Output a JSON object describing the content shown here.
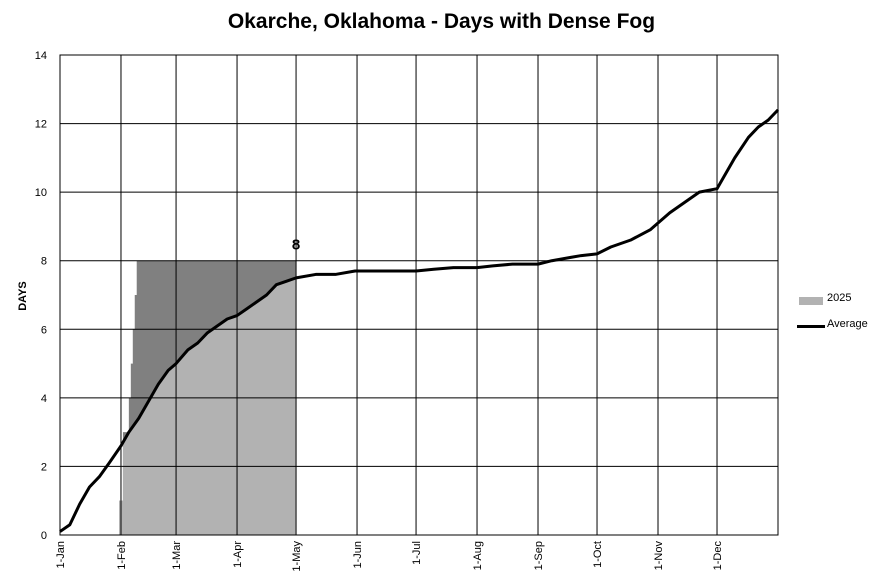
{
  "chart_data": {
    "type": "area",
    "title": "Okarche, Oklahoma - Days with Dense Fog",
    "ylabel": "DAYS",
    "xlabel": "",
    "ylim": [
      0,
      14
    ],
    "yticks": [
      0,
      2,
      4,
      6,
      8,
      10,
      12,
      14
    ],
    "x_ticks": [
      "1-Jan",
      "1-Feb",
      "1-Mar",
      "1-Apr",
      "1-May",
      "1-Jun",
      "1-Jul",
      "1-Aug",
      "1-Sep",
      "1-Oct",
      "1-Nov",
      "1-Dec"
    ],
    "grid": true,
    "legend_position": "right",
    "annotation": {
      "text": "8",
      "x_day": 120,
      "y": 8
    },
    "series": [
      {
        "name": "2025",
        "kind": "cumulative-area",
        "color": "#b2b2b2",
        "above_average_color": "#808080",
        "points": [
          [
            0,
            0
          ],
          [
            30,
            0
          ],
          [
            30,
            1
          ],
          [
            32,
            1
          ],
          [
            32,
            3
          ],
          [
            35,
            3
          ],
          [
            35,
            4
          ],
          [
            36,
            4
          ],
          [
            36,
            5
          ],
          [
            37,
            5
          ],
          [
            37,
            6
          ],
          [
            38,
            6
          ],
          [
            38,
            7
          ],
          [
            39,
            7
          ],
          [
            39,
            8
          ],
          [
            120,
            8
          ]
        ]
      },
      {
        "name": "Average",
        "kind": "line",
        "color": "#000000",
        "points": [
          [
            0,
            0.1
          ],
          [
            5,
            0.3
          ],
          [
            10,
            0.9
          ],
          [
            15,
            1.4
          ],
          [
            20,
            1.7
          ],
          [
            25,
            2.1
          ],
          [
            31,
            2.6
          ],
          [
            35,
            3.0
          ],
          [
            40,
            3.4
          ],
          [
            45,
            3.9
          ],
          [
            50,
            4.4
          ],
          [
            55,
            4.8
          ],
          [
            59,
            5.0
          ],
          [
            65,
            5.4
          ],
          [
            70,
            5.6
          ],
          [
            75,
            5.9
          ],
          [
            80,
            6.1
          ],
          [
            85,
            6.3
          ],
          [
            90,
            6.4
          ],
          [
            95,
            6.6
          ],
          [
            100,
            6.8
          ],
          [
            105,
            7.0
          ],
          [
            110,
            7.3
          ],
          [
            115,
            7.4
          ],
          [
            120,
            7.5
          ],
          [
            130,
            7.6
          ],
          [
            140,
            7.6
          ],
          [
            150,
            7.7
          ],
          [
            160,
            7.7
          ],
          [
            170,
            7.7
          ],
          [
            181,
            7.7
          ],
          [
            190,
            7.75
          ],
          [
            200,
            7.8
          ],
          [
            212,
            7.8
          ],
          [
            220,
            7.85
          ],
          [
            230,
            7.9
          ],
          [
            243,
            7.9
          ],
          [
            250,
            8.0
          ],
          [
            260,
            8.1
          ],
          [
            265,
            8.15
          ],
          [
            273,
            8.2
          ],
          [
            280,
            8.4
          ],
          [
            290,
            8.6
          ],
          [
            300,
            8.9
          ],
          [
            304,
            9.1
          ],
          [
            310,
            9.4
          ],
          [
            315,
            9.6
          ],
          [
            320,
            9.8
          ],
          [
            325,
            10.0
          ],
          [
            334,
            10.1
          ],
          [
            338,
            10.5
          ],
          [
            343,
            11.0
          ],
          [
            350,
            11.6
          ],
          [
            355,
            11.9
          ],
          [
            360,
            12.1
          ],
          [
            365,
            12.4
          ]
        ]
      }
    ]
  }
}
